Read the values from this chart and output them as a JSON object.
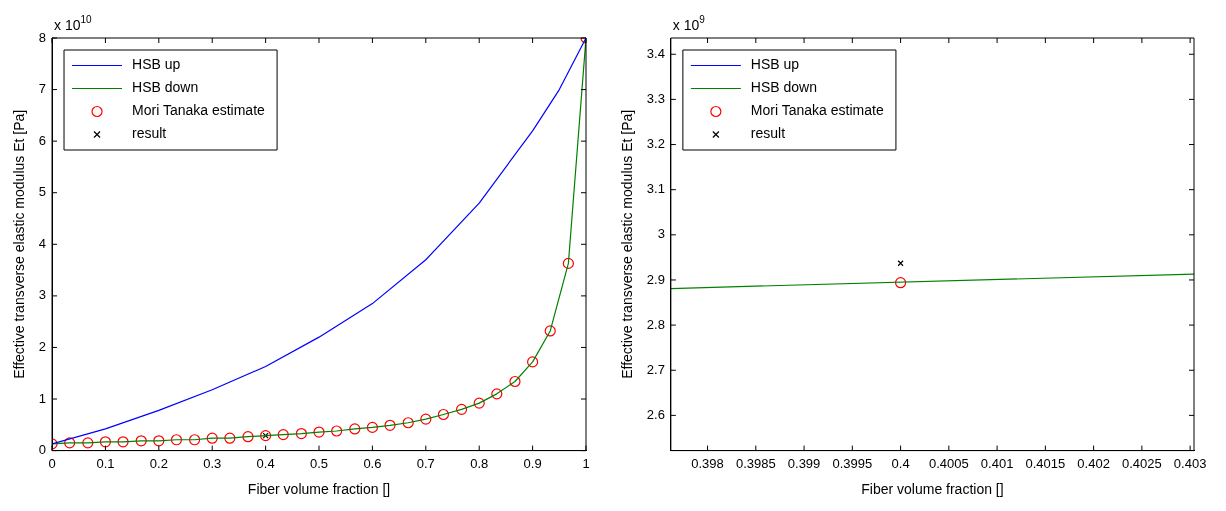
{
  "chart_data": [
    {
      "type": "line",
      "xlabel": "Fiber volume fraction []",
      "ylabel": "Effective transverse elastic modulus Et [Pa]",
      "annotations": [
        "x 10$^{10}$"
      ],
      "xlim": [
        0,
        1
      ],
      "ylim": [
        0,
        8
      ],
      "xticks": [
        0,
        0.1,
        0.2,
        0.3,
        0.4,
        0.5,
        0.6,
        0.7,
        0.8,
        0.9,
        1
      ],
      "yticks": [
        0,
        1,
        2,
        3,
        4,
        5,
        6,
        7,
        8
      ],
      "grid": false,
      "legend": "top left",
      "series": [
        {
          "name": "HSB up",
          "type": "line",
          "color": "#0000ff",
          "marker": "none",
          "x": [
            0,
            0.1,
            0.2,
            0.3,
            0.4,
            0.5,
            0.6,
            0.7,
            0.8,
            0.9,
            0.95,
            1
          ],
          "values": [
            0.13,
            0.42,
            0.78,
            1.18,
            1.63,
            2.2,
            2.85,
            3.7,
            4.8,
            6.2,
            7.0,
            8
          ]
        },
        {
          "name": "HSB down",
          "type": "line",
          "color": "#008000",
          "marker": "none",
          "x": [
            0,
            0.033,
            0.067,
            0.1,
            0.133,
            0.167,
            0.2,
            0.233,
            0.267,
            0.3,
            0.333,
            0.367,
            0.4,
            0.433,
            0.467,
            0.5,
            0.533,
            0.567,
            0.6,
            0.633,
            0.667,
            0.7,
            0.733,
            0.767,
            0.8,
            0.833,
            0.867,
            0.9,
            0.933,
            0.967,
            1
          ],
          "values": [
            0.13,
            0.15,
            0.15,
            0.17,
            0.17,
            0.19,
            0.19,
            0.21,
            0.21,
            0.24,
            0.24,
            0.27,
            0.29,
            0.31,
            0.33,
            0.36,
            0.38,
            0.42,
            0.45,
            0.49,
            0.54,
            0.61,
            0.7,
            0.8,
            0.92,
            1.1,
            1.34,
            1.72,
            2.32,
            3.63,
            8
          ]
        },
        {
          "name": "Mori Tanaka estimate",
          "type": "scatter",
          "color": "#ff0000",
          "marker": "circle",
          "x": [
            0,
            0.033,
            0.067,
            0.1,
            0.133,
            0.167,
            0.2,
            0.233,
            0.267,
            0.3,
            0.333,
            0.367,
            0.4,
            0.433,
            0.467,
            0.5,
            0.533,
            0.567,
            0.6,
            0.633,
            0.667,
            0.7,
            0.733,
            0.767,
            0.8,
            0.833,
            0.867,
            0.9,
            0.933,
            0.967,
            1
          ],
          "values": [
            0.13,
            0.15,
            0.15,
            0.17,
            0.17,
            0.19,
            0.19,
            0.21,
            0.21,
            0.24,
            0.24,
            0.27,
            0.29,
            0.31,
            0.33,
            0.36,
            0.38,
            0.42,
            0.45,
            0.49,
            0.54,
            0.61,
            0.7,
            0.8,
            0.92,
            1.1,
            1.34,
            1.72,
            2.32,
            3.63,
            8
          ]
        },
        {
          "name": "result",
          "type": "scatter",
          "color": "#000000",
          "marker": "cross",
          "x": [
            0.4
          ],
          "values": [
            0.29
          ]
        }
      ]
    },
    {
      "type": "line",
      "xlabel": "Fiber volume fraction []",
      "ylabel": "Effective transverse elastic modulus Et [Pa]",
      "annotations": [
        "x 10$^{9}$"
      ],
      "xlim": [
        0.39762,
        0.40304
      ],
      "ylim": [
        2.522,
        3.436
      ],
      "xticks": [
        0.398,
        0.3985,
        0.399,
        0.3995,
        0.4,
        0.4005,
        0.401,
        0.4015,
        0.402,
        0.4025,
        0.403
      ],
      "yticks": [
        2.6,
        2.7,
        2.8,
        2.9,
        3,
        3.1,
        3.2,
        3.3,
        3.4
      ],
      "grid": false,
      "legend": "top left",
      "series": [
        {
          "name": "HSB up",
          "type": "line",
          "color": "#0000ff",
          "marker": "none"
        },
        {
          "name": "HSB down",
          "type": "line",
          "color": "#008000",
          "marker": "none",
          "x": [
            0.39762,
            0.40304
          ],
          "values": [
            2.881,
            2.913
          ]
        },
        {
          "name": "Mori Tanaka estimate",
          "type": "scatter",
          "color": "#ff0000",
          "marker": "circle",
          "x": [
            0.4
          ],
          "values": [
            2.894
          ]
        },
        {
          "name": "result",
          "type": "scatter",
          "color": "#000000",
          "marker": "cross",
          "x": [
            0.4
          ],
          "values": [
            2.937
          ]
        }
      ]
    }
  ]
}
